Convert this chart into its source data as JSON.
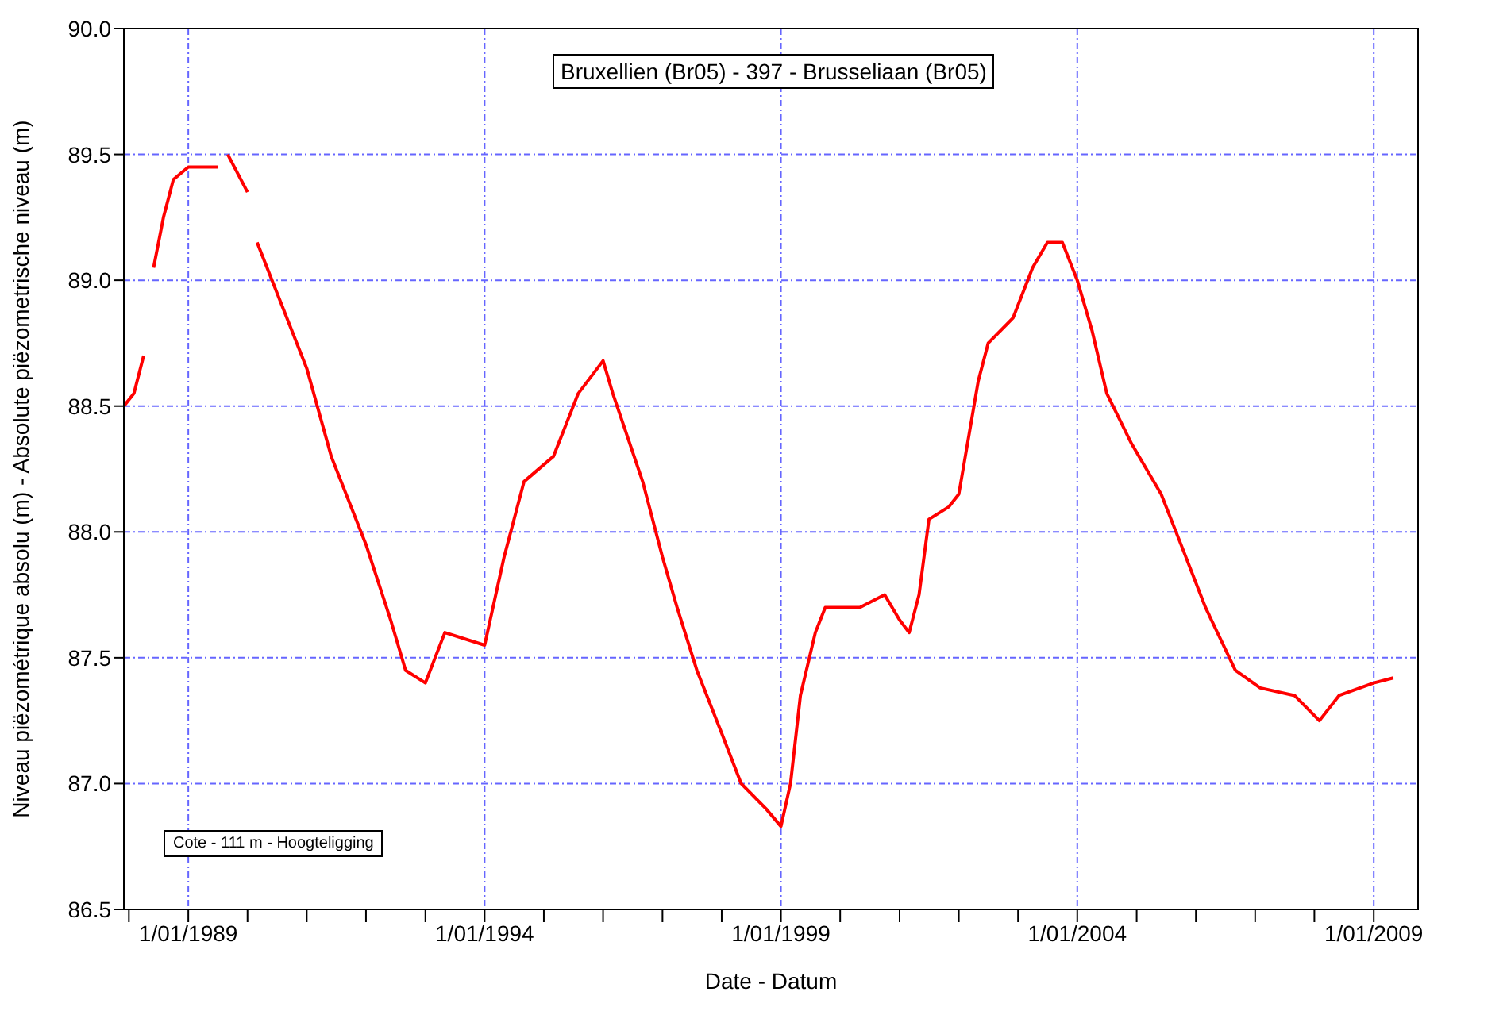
{
  "chart_data": {
    "type": "line",
    "title": "Bruxellien (Br05)  - 397 - Brusseliaan (Br05)",
    "xlabel": "Date - Datum",
    "ylabel": "Niveau piëzométrique absolu (m) - Absolute piëzometrische niveau (m)",
    "annotations": [
      "Cote - 111 m  - Hoogteligging"
    ],
    "x": [
      "1987-12",
      "1988-02",
      "1988-04",
      "1988-05",
      "1988-06",
      "1988-08",
      "1988-10",
      "1989-01",
      "1989-04",
      "1989-07",
      "1989-08",
      "1989-09",
      "1990-01",
      "1990-02",
      "1990-03",
      "1990-06",
      "1991-01",
      "1991-06",
      "1992-01",
      "1992-06",
      "1992-09",
      "1993-01",
      "1993-05",
      "1994-01",
      "1994-05",
      "1994-09",
      "1995-03",
      "1995-08",
      "1996-01",
      "1996-03",
      "1996-09",
      "1997-01",
      "1997-04",
      "1997-08",
      "1998-01",
      "1998-05",
      "1998-10",
      "1999-01",
      "1999-03",
      "1999-05",
      "1999-08",
      "1999-10",
      "2000-05",
      "2000-10",
      "2001-01",
      "2001-03",
      "2001-05",
      "2001-07",
      "2001-11",
      "2002-01",
      "2002-05",
      "2002-07",
      "2002-12",
      "2003-04",
      "2003-07",
      "2003-10",
      "2004-01",
      "2004-04",
      "2004-07",
      "2004-12",
      "2005-06",
      "2005-10",
      "2006-03",
      "2006-09",
      "2007-02",
      "2007-09",
      "2008-02",
      "2008-06",
      "2009-01",
      "2009-05"
    ],
    "series": [
      {
        "color": "#ff0000",
        "values": [
          88.5,
          88.55,
          88.7,
          null,
          89.05,
          89.25,
          89.4,
          89.45,
          89.45,
          89.45,
          null,
          89.5,
          89.35,
          null,
          89.15,
          89.0,
          88.65,
          88.3,
          87.95,
          87.65,
          87.45,
          87.4,
          87.6,
          87.55,
          87.9,
          88.2,
          88.3,
          88.55,
          88.68,
          88.55,
          88.2,
          87.9,
          87.7,
          87.45,
          87.2,
          87.0,
          86.9,
          86.83,
          87.0,
          87.35,
          87.6,
          87.7,
          87.7,
          87.75,
          87.65,
          87.6,
          87.75,
          88.05,
          88.1,
          88.15,
          88.6,
          88.75,
          88.85,
          89.05,
          89.15,
          89.15,
          89.0,
          88.8,
          88.55,
          88.35,
          88.15,
          87.95,
          87.7,
          87.45,
          87.38,
          87.35,
          87.25,
          87.35,
          87.4,
          87.42
        ]
      }
    ],
    "xlim": [
      "1987-12",
      "2009-10"
    ],
    "xticks": [
      {
        "value": "1988",
        "label": null
      },
      {
        "value": "1989-01-01",
        "label": "1/01/1989"
      },
      {
        "value": "1990",
        "label": null
      },
      {
        "value": "1991",
        "label": null
      },
      {
        "value": "1992",
        "label": null
      },
      {
        "value": "1993",
        "label": null
      },
      {
        "value": "1994-01-01",
        "label": "1/01/1994"
      },
      {
        "value": "1995",
        "label": null
      },
      {
        "value": "1996",
        "label": null
      },
      {
        "value": "1997",
        "label": null
      },
      {
        "value": "1998",
        "label": null
      },
      {
        "value": "1999-01-01",
        "label": "1/01/1999"
      },
      {
        "value": "2000",
        "label": null
      },
      {
        "value": "2001",
        "label": null
      },
      {
        "value": "2002",
        "label": null
      },
      {
        "value": "2003",
        "label": null
      },
      {
        "value": "2004-01-01",
        "label": "1/01/2004"
      },
      {
        "value": "2005",
        "label": null
      },
      {
        "value": "2006",
        "label": null
      },
      {
        "value": "2007",
        "label": null
      },
      {
        "value": "2008",
        "label": null
      },
      {
        "value": "2009-01-01",
        "label": "1/01/2009"
      }
    ],
    "ylim": [
      86.5,
      90.0
    ],
    "yticks": [
      {
        "value": 86.5,
        "label": "86.5"
      },
      {
        "value": 87,
        "label": "87.0"
      },
      {
        "value": 87.5,
        "label": "87.5"
      },
      {
        "value": 88,
        "label": "88.0"
      },
      {
        "value": 88.5,
        "label": "88.5"
      },
      {
        "value": 89,
        "label": "89.0"
      },
      {
        "value": 89.5,
        "label": "89.5"
      },
      {
        "value": 90,
        "label": "90.0"
      }
    ],
    "grid": true
  }
}
